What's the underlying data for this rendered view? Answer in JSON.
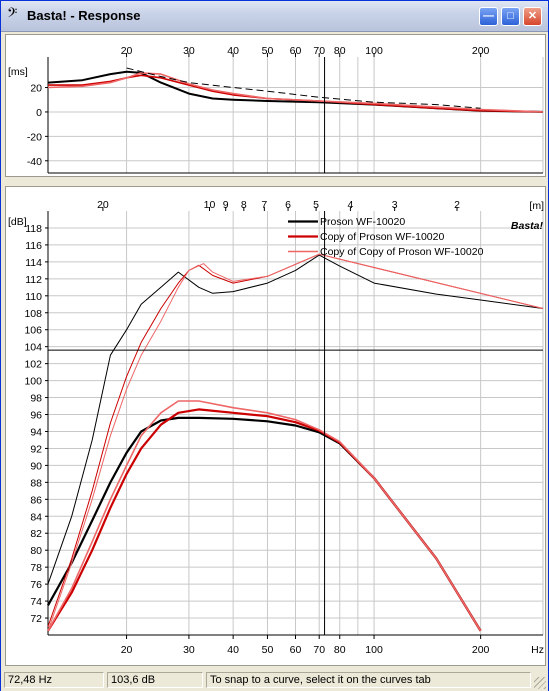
{
  "window": {
    "title": "Basta! - Response",
    "title_icon": "bass-clef-icon",
    "buttons": [
      "minimize-icon",
      "maximize-icon",
      "close-icon"
    ]
  },
  "top_chart": {
    "unit_label": "[ms]",
    "freq_ticks": [
      "20",
      "30",
      "40",
      "50",
      "60",
      "70",
      "80",
      "100",
      "200"
    ],
    "y_ticks": [
      "20",
      "0",
      "-20",
      "-40"
    ]
  },
  "main_chart": {
    "unit_label": "[dB]",
    "meter_unit_label": "[m]",
    "meter_ticks": [
      "30",
      "20",
      "10",
      "9",
      "8",
      "7",
      "6",
      "5",
      "4",
      "3",
      "2"
    ],
    "freq_ticks": [
      "20",
      "30",
      "40",
      "50",
      "60",
      "70",
      "80",
      "100",
      "200"
    ],
    "freq_unit": "Hz",
    "y_ticks": [
      "118",
      "116",
      "114",
      "112",
      "110",
      "108",
      "106",
      "104",
      "102",
      "100",
      "98",
      "96",
      "94",
      "92",
      "90",
      "88",
      "86",
      "84",
      "82",
      "80",
      "78",
      "76",
      "74",
      "72"
    ],
    "watermark": "Basta!",
    "legend": [
      {
        "name": "Proson WF-10020",
        "color": "#000000"
      },
      {
        "name": "Copy of Proson WF-10020",
        "color": "#cc0000"
      },
      {
        "name": "Copy of Copy of Proson WF-10020",
        "color": "#ee6666"
      }
    ]
  },
  "chart_data": [
    {
      "type": "line",
      "title": "",
      "ylabel": "[ms]",
      "xscale": "log",
      "xlim": [
        12,
        300
      ],
      "ylim": [
        -50,
        45
      ],
      "cursor_x": 72.48,
      "series": [
        {
          "name": "Proson WF-10020",
          "x": [
            12,
            15,
            18,
            20,
            22,
            25,
            30,
            35,
            40,
            50,
            70,
            100,
            150,
            200,
            300
          ],
          "y": [
            24,
            26,
            31,
            33,
            32,
            24,
            15,
            11,
            10,
            9,
            8,
            6,
            3,
            1,
            0
          ]
        },
        {
          "name": "Copy of Proson WF-10020",
          "x": [
            12,
            15,
            18,
            20,
            22,
            25,
            30,
            35,
            40,
            50,
            70,
            100,
            150,
            200,
            300
          ],
          "y": [
            22,
            22,
            25,
            28,
            30,
            28,
            22,
            17,
            14,
            11,
            9,
            6,
            3,
            1,
            0
          ]
        },
        {
          "name": "Copy of Copy of Proson WF-10020",
          "x": [
            12,
            15,
            18,
            20,
            22,
            25,
            30,
            35,
            40,
            50,
            70,
            100,
            150,
            200,
            300
          ],
          "y": [
            20,
            21,
            24,
            28,
            32,
            31,
            23,
            18,
            15,
            11,
            9,
            7,
            4,
            2,
            0
          ]
        },
        {
          "name": "",
          "x": [
            20,
            25,
            30,
            40,
            50,
            70,
            100,
            150,
            200
          ],
          "y": [
            36,
            29,
            24,
            20,
            17,
            12,
            8,
            6,
            3
          ]
        }
      ]
    },
    {
      "type": "line",
      "title": "",
      "ylabel": "[dB]",
      "xlabel": "Hz",
      "xscale": "log",
      "xlim": [
        12,
        300
      ],
      "ylim": [
        70,
        120
      ],
      "cursor_x": 72.48,
      "cursor_y": 103.6,
      "series": [
        {
          "name": "Proson WF-10020",
          "x": [
            12,
            14,
            16,
            18,
            20,
            22,
            25,
            28,
            32,
            40,
            50,
            60,
            70,
            80,
            100,
            150,
            200
          ],
          "y": [
            73.5,
            78.5,
            83.5,
            88,
            91.5,
            94,
            95.3,
            95.6,
            95.6,
            95.5,
            95.2,
            94.7,
            93.9,
            92.6,
            88.5,
            79,
            70.5
          ]
        },
        {
          "name": "Copy of Proson WF-10020",
          "x": [
            12,
            14,
            16,
            18,
            20,
            22,
            25,
            28,
            32,
            40,
            50,
            60,
            70,
            80,
            100,
            150,
            200
          ],
          "y": [
            70.5,
            75,
            80,
            85,
            89,
            92,
            94.8,
            96.2,
            96.6,
            96.2,
            95.8,
            95.1,
            94.1,
            92.7,
            88.5,
            79,
            70.5
          ]
        },
        {
          "name": "Copy of Copy of Proson WF-10020",
          "x": [
            12,
            14,
            16,
            18,
            20,
            22,
            25,
            28,
            32,
            40,
            50,
            60,
            70,
            80,
            100,
            150,
            200
          ],
          "y": [
            70.5,
            75.5,
            81,
            86,
            90,
            93.5,
            96.2,
            97.6,
            97.6,
            96.8,
            96.2,
            95.4,
            94.2,
            92.8,
            88.5,
            79,
            70.5
          ]
        },
        {
          "name": "",
          "x": [
            12,
            14,
            16,
            18,
            20,
            22,
            25,
            28,
            32,
            35,
            40,
            50,
            60,
            70,
            80,
            100,
            150,
            200,
            300
          ],
          "y": [
            76,
            84,
            93,
            103,
            106,
            109,
            111,
            112.8,
            111,
            110.3,
            110.5,
            111.5,
            113,
            114.8,
            113.5,
            111.5,
            110.2,
            109.5,
            108.5
          ]
        },
        {
          "name": "",
          "x": [
            12,
            14,
            16,
            18,
            20,
            22,
            25,
            28,
            30,
            32,
            35,
            40,
            50,
            70,
            300
          ],
          "y": [
            71,
            79,
            87,
            95,
            100.5,
            104.5,
            108.5,
            111.5,
            113,
            113.6,
            112.4,
            111.5,
            112.3,
            114.9,
            108.5
          ]
        },
        {
          "name": "",
          "x": [
            12,
            14,
            16,
            18,
            20,
            22,
            25,
            28,
            30,
            33,
            35,
            40,
            50,
            70,
            300
          ],
          "y": [
            70.5,
            78.5,
            86,
            93.5,
            99,
            103,
            107,
            111,
            113,
            113.8,
            112.8,
            111.7,
            112.3,
            114.9,
            108.5
          ]
        }
      ]
    }
  ],
  "status": {
    "frequency": "72,48 Hz",
    "level": "103,6 dB",
    "hint": "To snap to a curve, select it on the curves tab"
  }
}
